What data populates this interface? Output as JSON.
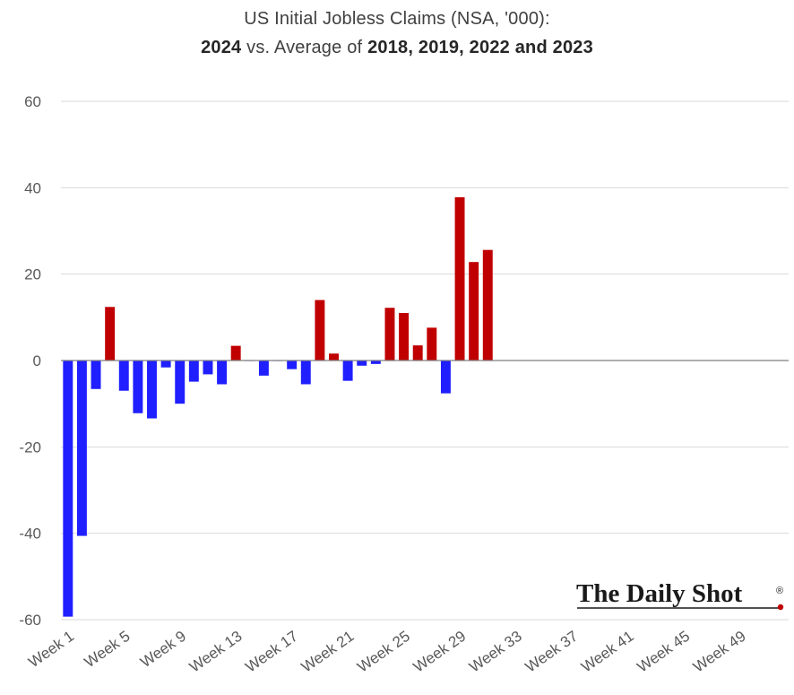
{
  "chart_data": {
    "type": "bar",
    "title": "US Initial Jobless Claims (NSA, '000):",
    "subtitle_parts": [
      {
        "text": "2024",
        "bold": true
      },
      {
        "text": " vs. Average of ",
        "bold": false
      },
      {
        "text": "2018, 2019, 2022 and 2023",
        "bold": true
      }
    ],
    "ylim": [
      -60,
      60
    ],
    "yticks": [
      60,
      40,
      20,
      0,
      -20,
      -40,
      -60
    ],
    "xtick_labels": [
      "Week 1",
      "Week 5",
      "Week 9",
      "Week 13",
      "Week 17",
      "Week 21",
      "Week 25",
      "Week 29",
      "Week 33",
      "Week 37",
      "Week 41",
      "Week 45",
      "Week 49"
    ],
    "total_weeks": 52,
    "grid": true,
    "colors": {
      "positive": "#c00000",
      "negative": "#1f1fff"
    },
    "series": [
      {
        "values": [
          -59.3,
          -40.6,
          -6.6,
          12.4,
          -7.0,
          -12.2,
          -13.4,
          -1.6,
          -10.0,
          -4.9,
          -3.2,
          -5.5,
          3.4,
          -0.1,
          -3.5,
          -0.1,
          -2.0,
          -5.5,
          14.0,
          1.6,
          -4.7,
          -1.2,
          -0.8,
          12.2,
          11.0,
          3.5,
          7.6,
          -7.6,
          37.8,
          22.8,
          25.6
        ]
      }
    ]
  },
  "logo": {
    "text": "The Daily Shot",
    "mark": "®"
  }
}
